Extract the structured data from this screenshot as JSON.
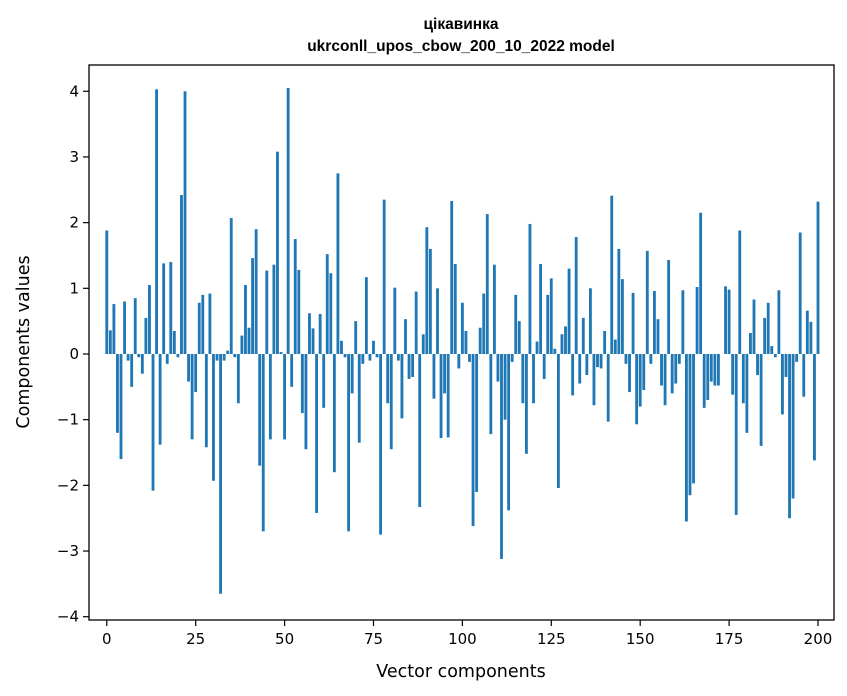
{
  "chart_data": {
    "type": "bar",
    "title": "цікавинка",
    "subtitle": "ukrconll_upos_cbow_200_10_2022 model",
    "xlabel": "Vector components",
    "ylabel": "Components values",
    "xlim": [
      -5,
      204.5
    ],
    "ylim": [
      -4.05,
      4.4
    ],
    "xticks": [
      0,
      25,
      50,
      75,
      100,
      125,
      150,
      175,
      200
    ],
    "yticks": [
      -4,
      -3,
      -2,
      -1,
      0,
      1,
      2,
      3,
      4
    ],
    "xtick_labels": [
      "0",
      "25",
      "50",
      "75",
      "100",
      "125",
      "150",
      "175",
      "200"
    ],
    "ytick_labels": [
      "−4",
      "−3",
      "−2",
      "−1",
      "0",
      "1",
      "2",
      "3",
      "4"
    ],
    "bar_color": "#1f77b4",
    "values": [
      1.88,
      0.36,
      0.76,
      -1.2,
      -1.6,
      0.8,
      -0.1,
      -0.5,
      0.85,
      -0.05,
      -0.3,
      0.55,
      1.05,
      -2.08,
      4.03,
      -1.38,
      1.38,
      -0.15,
      1.4,
      0.35,
      -0.05,
      2.42,
      4.0,
      -0.42,
      -1.3,
      -0.58,
      0.78,
      0.9,
      -1.42,
      0.92,
      -1.93,
      -0.1,
      -3.65,
      -0.1,
      0.05,
      2.07,
      -0.05,
      -0.75,
      0.28,
      1.05,
      0.4,
      1.46,
      1.9,
      -1.7,
      -2.7,
      1.27,
      -1.3,
      1.36,
      3.08,
      0.03,
      -1.3,
      4.05,
      -0.5,
      1.75,
      1.28,
      -0.9,
      -1.45,
      0.62,
      0.39,
      -2.42,
      0.61,
      -0.82,
      1.52,
      1.23,
      -1.8,
      2.75,
      0.2,
      -0.05,
      -2.7,
      -0.6,
      0.5,
      -1.35,
      -0.15,
      1.17,
      -0.1,
      0.2,
      -0.05,
      -2.75,
      2.35,
      -0.75,
      -1.45,
      1.01,
      -0.1,
      -0.98,
      0.53,
      -0.38,
      -0.35,
      0.95,
      -2.33,
      0.3,
      1.93,
      1.6,
      -0.68,
      1.0,
      -1.28,
      -0.6,
      -1.27,
      2.33,
      1.37,
      -0.22,
      0.78,
      0.35,
      -0.12,
      -2.62,
      -2.1,
      0.4,
      0.92,
      2.13,
      -1.22,
      1.36,
      -0.42,
      -3.12,
      -1.0,
      -2.38,
      -0.12,
      0.9,
      0.5,
      -0.75,
      -1.52,
      1.98,
      -0.75,
      0.19,
      1.37,
      -0.38,
      0.9,
      1.15,
      0.08,
      -2.04,
      0.3,
      0.42,
      1.3,
      -0.63,
      1.78,
      -0.45,
      0.55,
      -0.32,
      1.0,
      -0.78,
      -0.2,
      -0.22,
      0.35,
      -1.03,
      2.41,
      0.22,
      1.6,
      1.14,
      -0.15,
      -0.58,
      0.93,
      -1.07,
      -0.8,
      -0.55,
      1.57,
      -0.15,
      0.96,
      0.53,
      -0.48,
      -0.78,
      1.43,
      -0.6,
      -0.45,
      -0.15,
      0.97,
      -2.55,
      -2.15,
      -1.97,
      1.02,
      2.15,
      -0.82,
      -0.7,
      -0.42,
      -0.48,
      -0.48,
      0.0,
      1.03,
      0.98,
      -0.62,
      -2.45,
      1.88,
      -0.75,
      -1.2,
      0.32,
      0.83,
      -0.32,
      -1.4,
      0.55,
      0.78,
      0.12,
      -0.05,
      0.97,
      -0.92,
      -0.35,
      -2.5,
      -2.2,
      -0.12,
      1.85,
      -0.65,
      0.66,
      0.49,
      -1.62,
      2.32
    ]
  }
}
